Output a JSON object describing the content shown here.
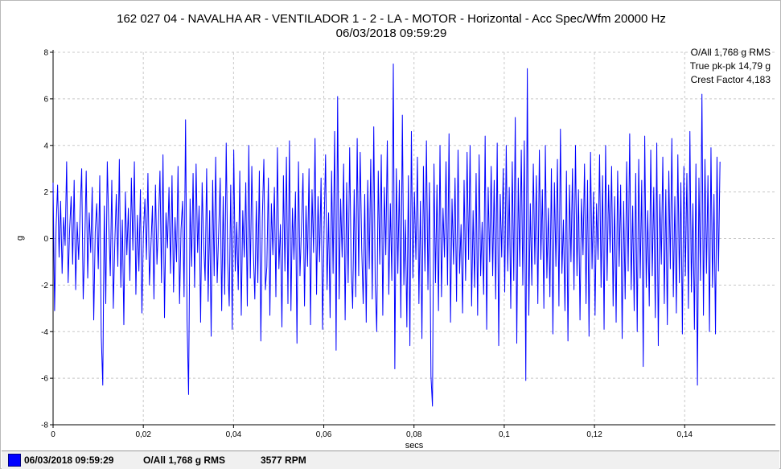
{
  "header": {
    "title_line1": "162 027 04 - NAVALHA AR - VENTILADOR 1 - 2 - LA - MOTOR - Horizontal - Acc Spec/Wfm 20000 Hz",
    "title_line2": "06/03/2018 09:59:29"
  },
  "stats": {
    "overall": "O/All 1,768 g RMS",
    "pk_pk": "True pk-pk 14,79 g",
    "crest": "Crest Factor 4,183"
  },
  "footer": {
    "timestamp": "06/03/2018 09:59:29",
    "overall": "O/All 1,768 g RMS",
    "rpm": "3577 RPM"
  },
  "colors": {
    "trace": "#0000ff",
    "grid": "#c8c8c8",
    "axis": "#000000"
  },
  "chart_data": {
    "type": "line",
    "xlabel": "secs",
    "ylabel": "g",
    "xlim": [
      0,
      0.1601
    ],
    "ylim": [
      -8,
      8
    ],
    "x_ticks": [
      0,
      0.02,
      0.04,
      0.06,
      0.08,
      0.1,
      0.12,
      0.14
    ],
    "x_tick_labels": [
      "0",
      "0,02",
      "0,04",
      "0,06",
      "0,08",
      "0,1",
      "0,12",
      "0,14"
    ],
    "y_ticks": [
      -8,
      -6,
      -4,
      -2,
      0,
      2,
      4,
      6,
      8
    ],
    "y_tick_labels": [
      "-8",
      "-6",
      "-4",
      "-2",
      "0",
      "2",
      "4",
      "6",
      "8"
    ],
    "grid": true,
    "series": [
      {
        "x_start": 0,
        "x_step": 0.0003337,
        "values": [
          2.4,
          -3.1,
          0.5,
          2.3,
          -0.8,
          1.6,
          -1.5,
          0.9,
          -0.3,
          3.3,
          -1.9,
          0.4,
          1.8,
          -1.1,
          2.5,
          -2.2,
          0.7,
          -0.9,
          1.2,
          3.0,
          -2.6,
          -0.4,
          2.9,
          -1.7,
          1.1,
          -0.6,
          2.2,
          -3.5,
          0.3,
          1.5,
          -1.3,
          2.7,
          -4.2,
          -6.3,
          1.4,
          -2.8,
          3.3,
          0.6,
          -1.6,
          2.5,
          -3.0,
          -0.2,
          1.9,
          -1.2,
          3.4,
          -2.1,
          0.8,
          -3.7,
          2.0,
          -0.7,
          1.3,
          -1.8,
          2.6,
          -0.5,
          3.3,
          -2.4,
          1.0,
          -1.4,
          2.1,
          -3.2,
          0.2,
          1.7,
          -0.9,
          2.8,
          -2.0,
          -0.3,
          1.4,
          -2.6,
          2.3,
          -1.1,
          0.6,
          2.9,
          -1.9,
          3.6,
          -3.4,
          1.1,
          -0.4,
          2.2,
          -1.5,
          2.7,
          -2.3,
          0.9,
          -1.0,
          3.1,
          -2.8,
          0.4,
          1.6,
          -2.5,
          5.1,
          -3.5,
          -6.7,
          1.7,
          -1.2,
          2.8,
          -2.1,
          3.2,
          -0.6,
          1.4,
          -3.6,
          2.4,
          -0.2,
          -1.8,
          3.0,
          -2.7,
          1.2,
          -4.2,
          2.5,
          -1.6,
          3.5,
          -1.9,
          0.3,
          2.6,
          -3.1,
          1.8,
          -2.4,
          4.1,
          -1.0,
          -2.9,
          2.3,
          -3.9,
          3.8,
          -1.4,
          0.7,
          -2.2,
          2.9,
          -3.3,
          1.2,
          -0.8,
          2.4,
          -2.9,
          4.0,
          -1.7,
          3.1,
          -0.5,
          -2.6,
          1.6,
          -1.9,
          2.9,
          -4.4,
          0.9,
          3.4,
          -2.2,
          -1.2,
          2.6,
          -3.3,
          1.5,
          -0.7,
          2.2,
          -2.5,
          3.9,
          -1.3,
          0.6,
          -3.8,
          2.7,
          -1.4,
          3.5,
          -2.8,
          4.2,
          -3.1,
          1.3,
          -0.9,
          2.0,
          -4.5,
          3.3,
          -1.6,
          0.5,
          2.8,
          -2.9,
          1.4,
          -1.2,
          3.0,
          -3.7,
          2.1,
          -0.6,
          4.3,
          -2.4,
          1.8,
          -1.0,
          2.6,
          -3.9,
          0.4,
          3.6,
          -2.2,
          1.1,
          -3.4,
          2.9,
          -1.5,
          4.6,
          -4.8,
          6.1,
          -2.6,
          1.7,
          -0.8,
          3.2,
          -3.5,
          2.4,
          -1.9,
          3.9,
          -1.2,
          -3.0,
          2.1,
          -2.5,
          4.3,
          -1.6,
          3.7,
          -0.4,
          -2.8,
          1.9,
          -3.6,
          2.5,
          -1.3,
          3.4,
          -2.6,
          4.8,
          -2.0,
          -4.0,
          2.9,
          -1.1,
          3.6,
          -3.3,
          2.2,
          -0.7,
          4.2,
          -2.4,
          1.5,
          -1.8,
          7.5,
          -5.6,
          3.0,
          -1.5,
          2.5,
          -3.4,
          5.3,
          -2.0,
          0.8,
          -3.8,
          2.7,
          -4.6,
          4.6,
          -1.7,
          2.0,
          -0.9,
          3.5,
          -2.8,
          1.6,
          -4.3,
          3.1,
          -1.4,
          4.2,
          -2.2,
          2.4,
          -5.9,
          -7.2,
          3.2,
          -1.9,
          2.3,
          -3.1,
          4.0,
          -2.5,
          1.3,
          -0.8,
          3.3,
          -2.0,
          4.5,
          -3.6,
          1.7,
          -1.1,
          2.6,
          -2.7,
          3.8,
          -1.5,
          0.6,
          -3.2,
          2.5,
          -1.8,
          3.7,
          -0.9,
          4.0,
          -2.9,
          1.2,
          -2.1,
          2.8,
          -3.3,
          3.6,
          -1.6,
          0.7,
          -2.4,
          4.4,
          -3.9,
          2.2,
          -1.0,
          3.1,
          -1.6,
          2.5,
          -2.6,
          4.1,
          -4.6,
          1.9,
          -0.8,
          3.0,
          -2.3,
          4.0,
          -1.4,
          2.2,
          -3.0,
          3.3,
          -1.8,
          5.2,
          -4.5,
          2.6,
          -1.2,
          3.8,
          -2.0,
          4.2,
          -6.1,
          7.3,
          -3.3,
          1.5,
          -2.0,
          3.2,
          -1.1,
          2.7,
          -2.8,
          3.8,
          -0.9,
          2.1,
          -3.0,
          4.0,
          -1.7,
          1.3,
          -2.5,
          3.0,
          -4.1,
          2.4,
          -1.2,
          3.4,
          -2.9,
          4.7,
          -1.5,
          0.8,
          -3.1,
          2.9,
          -4.4,
          2.3,
          -1.0,
          3.0,
          -2.2,
          4.0,
          -1.6,
          2.1,
          -3.5,
          1.7,
          -0.7,
          3.2,
          -2.8,
          2.5,
          -4.2,
          3.7,
          -1.3,
          2.0,
          -3.3,
          1.5,
          -0.9,
          3.6,
          -2.1,
          2.7,
          -3.9,
          4.0,
          -1.8,
          2.3,
          -0.6,
          3.1,
          -2.9,
          1.8,
          -3.6,
          2.9,
          -1.2,
          2.3,
          -4.3,
          1.6,
          -2.6,
          3.3,
          -1.4,
          4.5,
          -2.2,
          1.4,
          -3.1,
          2.8,
          -4.0,
          3.4,
          -1.7,
          2.5,
          -5.5,
          4.4,
          -2.1,
          1.2,
          -2.9,
          3.8,
          -1.6,
          2.2,
          -3.4,
          4.1,
          -4.6,
          1.9,
          -1.1,
          3.5,
          -2.8,
          2.1,
          -3.7,
          2.9,
          -1.3,
          4.3,
          -2.5,
          1.8,
          -3.2,
          3.6,
          -1.9,
          2.4,
          -4.1,
          3.1,
          -1.6,
          2.8,
          -3.0,
          4.6,
          -2.3,
          1.5,
          -3.9,
          3.2,
          -6.3,
          2.6,
          -1.8,
          6.2,
          -3.3,
          3.4,
          -1.5,
          2.7,
          -4.0,
          3.9,
          -2.1,
          1.9,
          -4.1,
          3.5,
          -1.4,
          3.3
        ]
      }
    ]
  }
}
